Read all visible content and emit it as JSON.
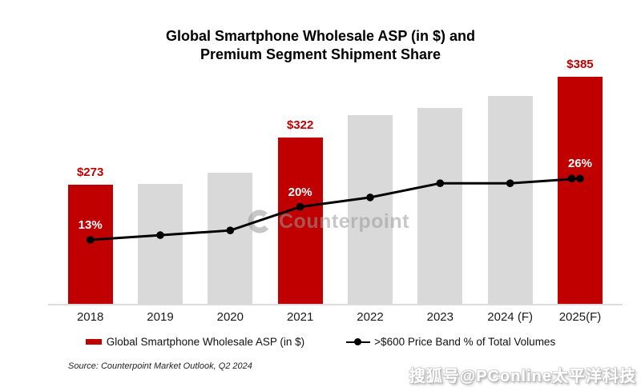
{
  "title": {
    "line1": "Global Smartphone Wholesale ASP (in $) and",
    "line2": "Premium Segment Shipment Share"
  },
  "chart_data": {
    "type": "combo-bar-line",
    "categories": [
      "2018",
      "2019",
      "2020",
      "2021",
      "2022",
      "2023",
      "2024 (F)",
      "2025(F)"
    ],
    "series": [
      {
        "name": "Global Smartphone Wholesale ASP (in $)",
        "chart_type": "bar",
        "unit": "USD",
        "values": [
          273,
          274,
          286,
          322,
          345,
          353,
          365,
          385
        ],
        "point_labels": [
          "$273",
          null,
          null,
          "$322",
          null,
          null,
          null,
          "$385"
        ],
        "bar_colors": [
          "#c00000",
          "#d9d9d9",
          "#d9d9d9",
          "#c00000",
          "#d9d9d9",
          "#d9d9d9",
          "#d9d9d9",
          "#c00000"
        ],
        "note": "only 2018, 2021 and 2025(F) values are labeled; other bar values estimated from heights"
      },
      {
        "name": ">$600 Price Band % of Total Volumes",
        "chart_type": "line",
        "unit": "%",
        "values": [
          13,
          14,
          15,
          20,
          22,
          25,
          25,
          26
        ],
        "point_labels": [
          "13%",
          null,
          null,
          "20%",
          null,
          null,
          null,
          "26%"
        ],
        "color": "#000000",
        "note": "only 13%, 20% and 26% are labeled; other point values estimated from line position"
      }
    ],
    "axes": {
      "value_axis_visible": false,
      "percent_axis_visible": false,
      "gridlines": false,
      "implied_value_range": [
        150,
        390
      ]
    },
    "legend_position": "bottom"
  },
  "legend": {
    "bar_label": "Global Smartphone Wholesale ASP (in $)",
    "line_label": ">$600 Price Band % of Total Volumes"
  },
  "source": "Source: Counterpoint Market Outlook, Q2 2024",
  "watermarks": {
    "center_text": "Counterpoint",
    "bottom_right": "搜狐号@PConline太平洋科技"
  },
  "colors": {
    "bar_highlight": "#c00000",
    "bar_default": "#d9d9d9",
    "line": "#000000",
    "value_label": "#c00000",
    "percent_label": "#ffffff",
    "background": "#ffffff"
  }
}
